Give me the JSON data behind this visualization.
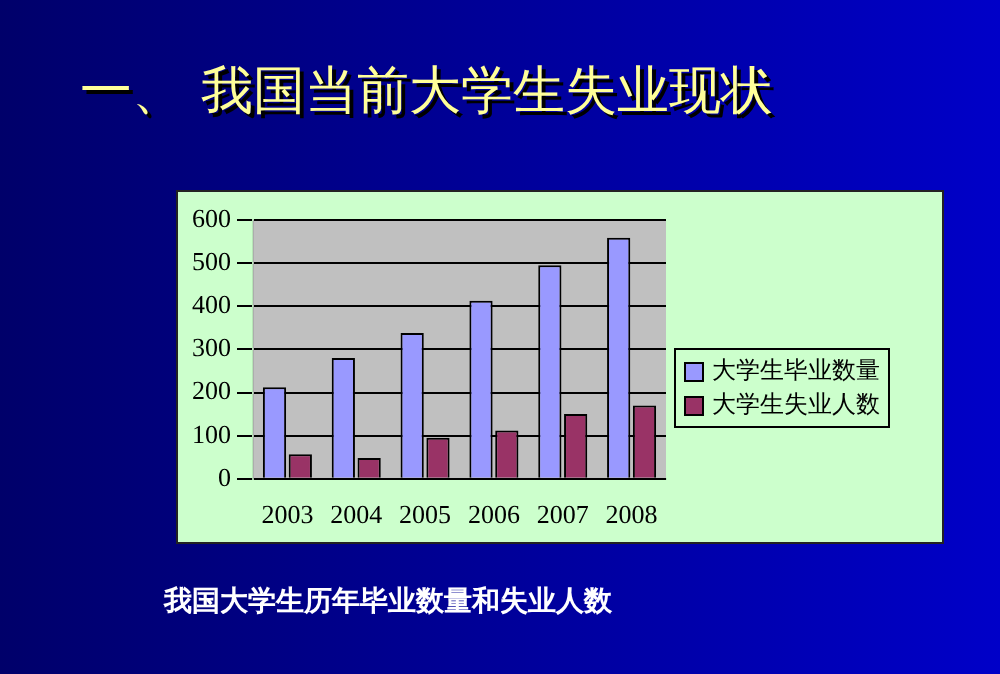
{
  "chart_data": {
    "type": "bar",
    "title": "一、  我国当前大学生失业现状",
    "categories": [
      "2003",
      "2004",
      "2005",
      "2006",
      "2007",
      "2008"
    ],
    "series": [
      {
        "name": "大学生毕业数量",
        "color": "#9999ff",
        "values": [
          212,
          280,
          338,
          413,
          495,
          559
        ]
      },
      {
        "name": "大学生失业人数",
        "color": "#993366",
        "values": [
          57,
          48,
          95,
          112,
          150,
          170
        ]
      }
    ],
    "ylim": [
      0,
      600
    ],
    "yticks": [
      0,
      100,
      200,
      300,
      400,
      500,
      600
    ],
    "grid": "y",
    "legend": "right",
    "annotations": [
      "我国大学生历年毕业数量和失业人数"
    ]
  }
}
